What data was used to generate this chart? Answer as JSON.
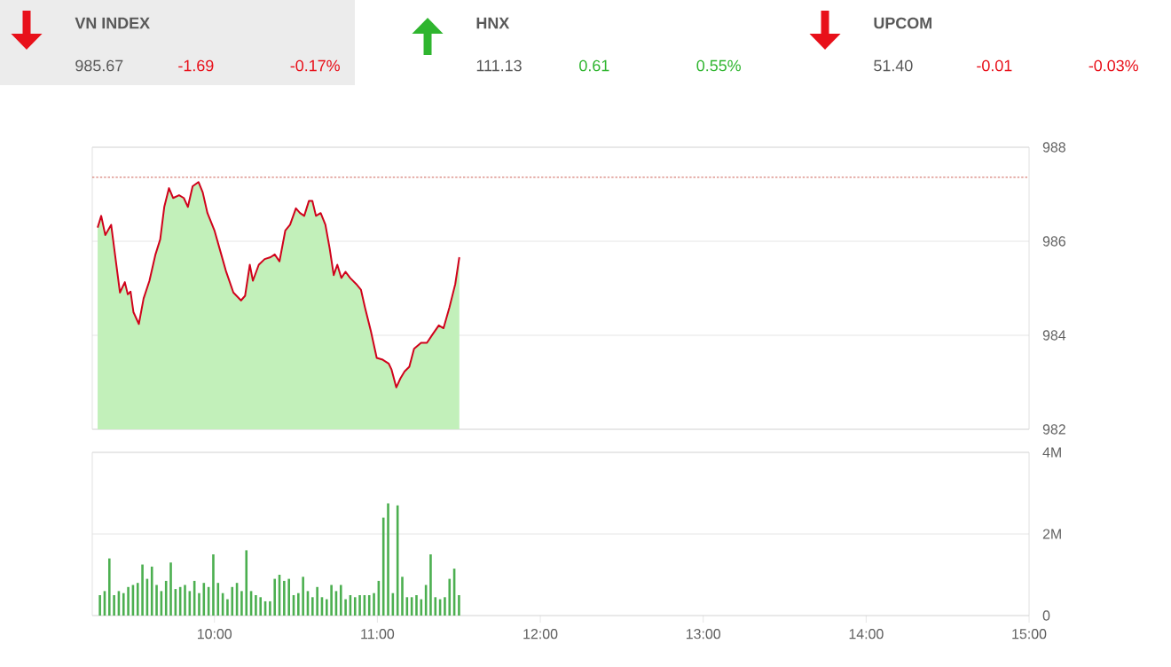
{
  "chart_data": [
    {
      "type": "other",
      "categories": [
        "VN INDEX",
        "HNX",
        "UPCOM"
      ],
      "values": [
        -1.69,
        0.61,
        -0.01
      ],
      "value_labels": [
        "-1.69",
        "0.61",
        "-0.01"
      ],
      "annotations": [
        "985.67",
        "-0.17%",
        "111.13",
        "0.55%",
        "51.40",
        "-0.03%"
      ]
    },
    {
      "type": "area",
      "xlim": [
        9.25,
        15
      ],
      "ylim": [
        982,
        988
      ],
      "yticks": [
        982,
        984,
        986,
        988
      ],
      "tick_labels": "y",
      "grid": "y",
      "ref_lines": [
        {
          "axis": "y",
          "value": 987.36,
          "color": "#c0392b",
          "line_style": "dotted"
        }
      ],
      "x": [
        9.283,
        9.305,
        9.33,
        9.366,
        9.42,
        9.45,
        9.468,
        9.485,
        9.503,
        9.536,
        9.565,
        9.601,
        9.638,
        9.667,
        9.692,
        9.721,
        9.746,
        9.783,
        9.812,
        9.837,
        9.866,
        9.902,
        9.928,
        9.957,
        10.0,
        10.036,
        10.072,
        10.116,
        10.163,
        10.188,
        10.217,
        10.236,
        10.272,
        10.308,
        10.344,
        10.37,
        10.399,
        10.435,
        10.464,
        10.5,
        10.525,
        10.551,
        10.58,
        10.601,
        10.623,
        10.652,
        10.681,
        10.707,
        10.732,
        10.754,
        10.779,
        10.804,
        10.833,
        10.87,
        10.899,
        10.924,
        10.96,
        10.996,
        11.033,
        11.069,
        11.087,
        11.116,
        11.141,
        11.167,
        11.196,
        11.225,
        11.268,
        11.304,
        11.341,
        11.377,
        11.406,
        11.442,
        11.478,
        11.503
      ],
      "series": [
        {
          "type": "area",
          "color": "#c2f0ba",
          "values": [
            986.29,
            986.54,
            986.13,
            986.35,
            984.91,
            985.13,
            984.87,
            984.93,
            984.49,
            984.24,
            984.78,
            985.16,
            985.72,
            986.04,
            986.73,
            987.13,
            986.92,
            986.98,
            986.92,
            986.73,
            987.17,
            987.26,
            987.04,
            986.6,
            986.23,
            985.79,
            985.35,
            984.91,
            984.74,
            984.84,
            985.5,
            985.16,
            985.5,
            985.62,
            985.66,
            985.72,
            985.57,
            986.23,
            986.35,
            986.7,
            986.6,
            986.54,
            986.86,
            986.86,
            986.54,
            986.6,
            986.35,
            985.85,
            985.28,
            985.5,
            985.22,
            985.35,
            985.22,
            985.09,
            984.97,
            984.59,
            984.09,
            983.52,
            983.48,
            983.4,
            983.27,
            982.89,
            983.08,
            983.23,
            983.33,
            983.71,
            983.84,
            983.84,
            984.03,
            984.21,
            984.15,
            984.59,
            985.09,
            985.66
          ]
        },
        {
          "type": "line",
          "color": "#d0021b",
          "values": [
            986.29,
            986.54,
            986.13,
            986.35,
            984.91,
            985.13,
            984.87,
            984.93,
            984.49,
            984.24,
            984.78,
            985.16,
            985.72,
            986.04,
            986.73,
            987.13,
            986.92,
            986.98,
            986.92,
            986.73,
            987.17,
            987.26,
            987.04,
            986.6,
            986.23,
            985.79,
            985.35,
            984.91,
            984.74,
            984.84,
            985.5,
            985.16,
            985.5,
            985.62,
            985.66,
            985.72,
            985.57,
            986.23,
            986.35,
            986.7,
            986.6,
            986.54,
            986.86,
            986.86,
            986.54,
            986.6,
            986.35,
            985.85,
            985.28,
            985.5,
            985.22,
            985.35,
            985.22,
            985.09,
            984.97,
            984.59,
            984.09,
            983.52,
            983.48,
            983.4,
            983.27,
            982.89,
            983.08,
            983.23,
            983.33,
            983.71,
            983.84,
            983.84,
            984.03,
            984.21,
            984.15,
            984.59,
            985.09,
            985.66
          ]
        }
      ]
    },
    {
      "type": "bar",
      "color": "#4caf50",
      "xlim": [
        9.25,
        15
      ],
      "ylim": [
        0,
        4
      ],
      "yticks": [
        0,
        {
          "value": 2,
          "label": "2M"
        },
        {
          "value": 4,
          "label": "4M"
        }
      ],
      "xticks": [
        {
          "value": 10,
          "label": "10:00"
        },
        {
          "value": 11,
          "label": "11:00"
        },
        {
          "value": 12,
          "label": "12:00"
        },
        {
          "value": 13,
          "label": "13:00"
        },
        {
          "value": 14,
          "label": "14:00"
        },
        {
          "value": 15,
          "label": "15:00"
        }
      ],
      "grid": "y",
      "x": [
        9.297,
        9.326,
        9.355,
        9.384,
        9.413,
        9.442,
        9.471,
        9.5,
        9.529,
        9.558,
        9.587,
        9.616,
        9.645,
        9.674,
        9.703,
        9.732,
        9.761,
        9.79,
        9.819,
        9.848,
        9.877,
        9.906,
        9.935,
        9.964,
        9.993,
        10.022,
        10.051,
        10.08,
        10.109,
        10.138,
        10.167,
        10.196,
        10.225,
        10.254,
        10.283,
        10.312,
        10.341,
        10.37,
        10.399,
        10.428,
        10.457,
        10.486,
        10.515,
        10.544,
        10.573,
        10.602,
        10.631,
        10.66,
        10.689,
        10.718,
        10.747,
        10.776,
        10.805,
        10.834,
        10.863,
        10.892,
        10.921,
        10.95,
        10.979,
        11.008,
        11.037,
        11.066,
        11.095,
        11.124,
        11.153,
        11.182,
        11.211,
        11.24,
        11.269,
        11.298,
        11.327,
        11.356,
        11.385,
        11.414,
        11.443,
        11.472,
        11.501
      ],
      "values": [
        0.5,
        0.6,
        1.4,
        0.5,
        0.6,
        0.55,
        0.7,
        0.75,
        0.8,
        1.25,
        0.9,
        1.2,
        0.75,
        0.6,
        0.85,
        1.3,
        0.65,
        0.7,
        0.75,
        0.6,
        0.85,
        0.55,
        0.8,
        0.7,
        1.5,
        0.8,
        0.55,
        0.4,
        0.7,
        0.8,
        0.6,
        1.6,
        0.6,
        0.5,
        0.45,
        0.35,
        0.35,
        0.9,
        1.0,
        0.85,
        0.9,
        0.5,
        0.55,
        0.95,
        0.6,
        0.45,
        0.7,
        0.45,
        0.4,
        0.75,
        0.6,
        0.75,
        0.4,
        0.5,
        0.45,
        0.5,
        0.5,
        0.5,
        0.55,
        0.85,
        2.4,
        2.75,
        0.55,
        2.7,
        0.95,
        0.45,
        0.45,
        0.5,
        0.4,
        0.75,
        1.5,
        0.45,
        0.4,
        0.45,
        0.9,
        1.15,
        0.5
      ]
    }
  ]
}
